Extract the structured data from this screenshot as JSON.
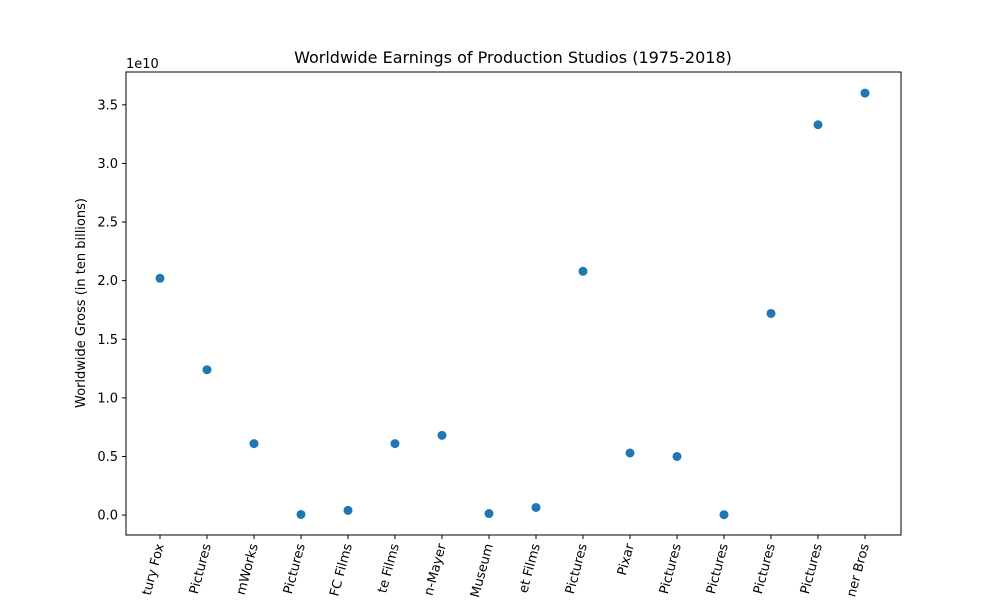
{
  "chart_data": {
    "type": "scatter",
    "title": "Worldwide Earnings of Production Studios (1975-2018)",
    "xlabel": "",
    "ylabel": "Worldwide Gross (in ten billions)",
    "offset_text": "1e10",
    "categories": [
      "tury Fox",
      "Pictures",
      "mWorks",
      "Pictures",
      "FC Films",
      "te Films",
      "n-Mayer",
      "Museum",
      "et Films",
      "Pictures",
      "Pixar",
      "Pictures",
      "Pictures",
      "Pictures",
      "Pictures",
      "ner Bros"
    ],
    "values": [
      20200000000,
      12400000000,
      6100000000,
      50000000,
      400000000,
      6100000000,
      6800000000,
      130000000,
      650000000,
      20800000000,
      5300000000,
      5000000000,
      30000000,
      17200000000,
      33300000000,
      36000000000
    ],
    "yticks": [
      0,
      5000000000,
      10000000000,
      15000000000,
      20000000000,
      25000000000,
      30000000000,
      35000000000
    ],
    "ytick_labels": [
      "0.0",
      "0.5",
      "1.0",
      "1.5",
      "2.0",
      "2.5",
      "3.0",
      "3.5"
    ],
    "ylim": [
      -1700000000,
      37800000000
    ],
    "grid": false,
    "marker_color": "#1f77b4"
  }
}
